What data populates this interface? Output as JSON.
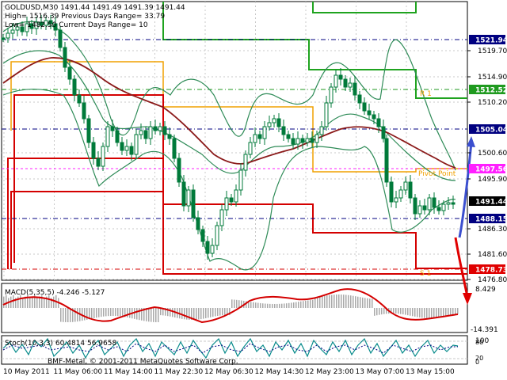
{
  "header": {
    "line1": "GOLDUSD,M30  1491.44 1491.49 1491.39 1491.44",
    "line2": "High= 1516.39    Previous Days Range= 33.79",
    "line3": "Low= 1482.50     Current Days Range= 10"
  },
  "price_axis": {
    "ticks": [
      "1519.70",
      "1514.90",
      "1510.20",
      "1500.60",
      "1495.90",
      "1486.30",
      "1481.60",
      "1476.80"
    ],
    "badges": [
      {
        "label": "1521.94",
        "bg": "#000080",
        "fg": "#ffffff"
      },
      {
        "label": "1512.52",
        "bg": "#1f9a1f",
        "fg": "#ffffff"
      },
      {
        "label": "1505.04",
        "bg": "#000080",
        "fg": "#ffffff"
      },
      {
        "label": "1497.56",
        "bg": "#ff1fff",
        "fg": "#ffffff"
      },
      {
        "label": "1491.44",
        "bg": "#000000",
        "fg": "#ffffff"
      },
      {
        "label": "1488.15",
        "bg": "#000080",
        "fg": "#ffffff"
      },
      {
        "label": "1478.73",
        "bg": "#e00000",
        "fg": "#ffffff"
      }
    ]
  },
  "level_labels": {
    "r1": "R 1",
    "pivot": "Pivot Point",
    "s1": "S 1"
  },
  "macd": {
    "label": "MACD(5,35,5) -4.246 -5.127",
    "ticks": [
      "8.429",
      "-14.391"
    ]
  },
  "stoch": {
    "label": "Stoch(10,3,3) 60.4814 56.9658",
    "ticks": [
      "100",
      "80",
      "20",
      "0"
    ]
  },
  "time_axis": {
    "labels": [
      "10 May 2011",
      "11 May 06:00",
      "11 May 14:00",
      "11 May 22:30",
      "12 May 06:30",
      "12 May 14:30",
      "12 May 23:00",
      "13 May 07:00",
      "13 May 15:00"
    ]
  },
  "copyright": "BMF-Metal, © 2001-2011 MetaQuotes Software Corp.",
  "colors": {
    "background": "#ffffff",
    "grid": "#c8c8c8",
    "candle": "#007a3a",
    "bollinger": "#2e8b57",
    "moving_average": "#8b1a1a",
    "high_box": "#1fa31f",
    "range_box": "#f0a000",
    "low_box": "#d40000",
    "forecast_arrow": "#3b4fcf",
    "forecast_arrow_down": "#e00000"
  }
}
